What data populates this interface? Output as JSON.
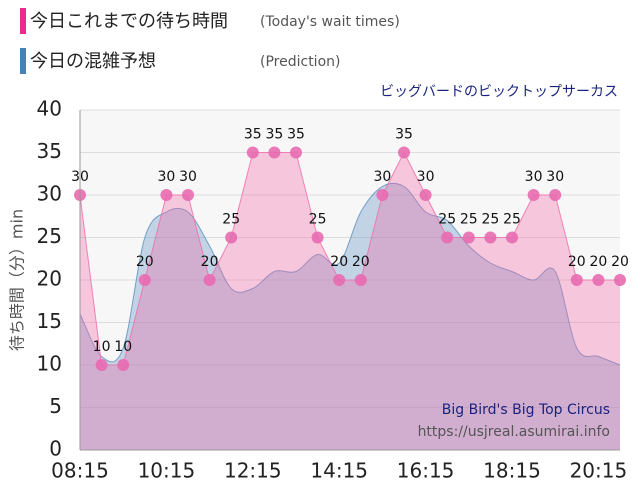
{
  "chart_data": {
    "type": "area",
    "title": "ビッグバードのビックトップサーカス",
    "ylabel": "待ち時間（分）min",
    "watermark": [
      "Big Bird's Big Top Circus",
      "https://usjreal.asumirai.info"
    ],
    "categories": [
      "08:15",
      null,
      null,
      null,
      "10:15",
      null,
      null,
      null,
      "12:15",
      null,
      null,
      null,
      "14:15",
      null,
      null,
      null,
      "16:15",
      null,
      null,
      null,
      "18:15",
      null,
      null,
      null,
      "20:15",
      null
    ],
    "series": [
      {
        "name": "今日これまでの待ち時間",
        "note": "(Today's wait times)",
        "color": "#f06aa8",
        "smooth": false,
        "markers": true,
        "values": [
          30,
          10,
          10,
          20,
          30,
          30,
          20,
          25,
          35,
          35,
          35,
          25,
          20,
          20,
          30,
          35,
          30,
          25,
          25,
          25,
          25,
          30,
          30,
          20,
          20,
          20
        ]
      },
      {
        "name": "今日の混雑予想",
        "note": "(Prediction)",
        "color": "#5b8fbf",
        "smooth": true,
        "markers": false,
        "values": [
          16,
          11,
          12,
          25,
          28,
          28,
          24,
          19,
          19,
          21,
          21,
          23,
          22,
          28,
          31,
          31,
          28,
          27,
          24,
          22,
          21,
          20,
          21,
          12,
          11,
          10
        ]
      }
    ],
    "ylim": [
      0,
      40
    ],
    "yticks": [
      0,
      5,
      10,
      15,
      20,
      25,
      30,
      35,
      40
    ],
    "grid": true
  }
}
